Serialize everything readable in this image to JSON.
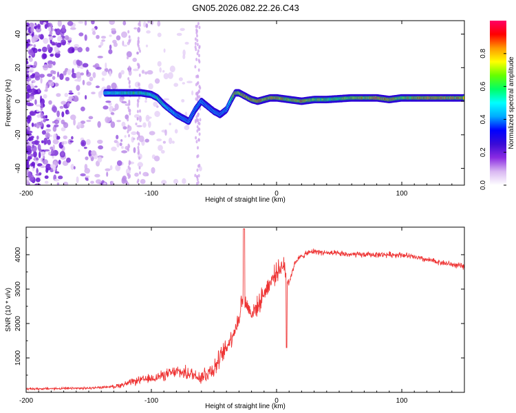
{
  "title": "GN05.2026.082.22.26.C43",
  "chart_data": [
    {
      "type": "heatmap",
      "name": "spectrogram",
      "xlabel": "Height of straight line (km)",
      "ylabel": "Frequency (Hz)",
      "xlim": [
        -200,
        150
      ],
      "ylim": [
        -50,
        48
      ],
      "xticks": [
        -200,
        -100,
        0,
        100
      ],
      "yticks": [
        -40,
        -20,
        0,
        20,
        40
      ],
      "colorbar": {
        "label": "Normalized spectral amplitude",
        "range": [
          0,
          1
        ],
        "ticks": [
          "0.0",
          "0.2",
          "0.4",
          "0.6",
          "0.8"
        ],
        "tick_values": [
          0,
          0.2,
          0.4,
          0.6,
          0.8
        ],
        "colors": [
          "#ffffff",
          "#d9b8f2",
          "#8a2be2",
          "#3a0bd6",
          "#0000ff",
          "#00aaff",
          "#00ffff",
          "#00ff66",
          "#66ff00",
          "#ffff00",
          "#ff9900",
          "#ff0000",
          "#ff0066"
        ]
      },
      "trace": {
        "height_km": [
          -137,
          -125,
          -115,
          -108,
          -100,
          -95,
          -90,
          -85,
          -80,
          -75,
          -70,
          -65,
          -60,
          -55,
          -50,
          -45,
          -40,
          -36,
          -33,
          -30,
          -25,
          -20,
          -15,
          -10,
          -5,
          0,
          10,
          20,
          30,
          40,
          60,
          80,
          90,
          100,
          120,
          150
        ],
        "frequency_hz": [
          5,
          5,
          5,
          5,
          4,
          2,
          -2,
          -5,
          -8,
          -10,
          -12,
          -5,
          0,
          -3,
          -6,
          -8,
          -5,
          1,
          5,
          5,
          3,
          1,
          0,
          1,
          2,
          2,
          1,
          0,
          1,
          1,
          2,
          2,
          1,
          2,
          2,
          2
        ],
        "amplitude": [
          0.45,
          0.5,
          0.6,
          0.55,
          0.5,
          0.55,
          0.5,
          0.4,
          0.35,
          0.3,
          0.25,
          0.3,
          0.35,
          0.25,
          0.3,
          0.25,
          0.3,
          0.5,
          0.85,
          0.8,
          0.9,
          0.85,
          0.9,
          0.8,
          0.85,
          0.9,
          0.75,
          0.85,
          0.7,
          0.65,
          0.75,
          0.9,
          0.85,
          0.7,
          0.9,
          0.85
        ]
      },
      "noise_region_km": [
        -200,
        -60
      ]
    },
    {
      "type": "line",
      "name": "snr",
      "xlabel": "Height of straight line (km)",
      "ylabel": "SNR (10 * v/v)",
      "xlim": [
        -200,
        150
      ],
      "ylim": [
        0,
        4800
      ],
      "xticks": [
        -200,
        -100,
        0,
        100
      ],
      "yticks": [
        1000,
        2000,
        3000,
        4000
      ],
      "color": "#ee3333",
      "envelope": {
        "height_km": [
          -200,
          -150,
          -130,
          -120,
          -110,
          -100,
          -90,
          -80,
          -70,
          -60,
          -50,
          -45,
          -40,
          -35,
          -30,
          -28,
          -25,
          -20,
          -15,
          -10,
          -5,
          0,
          5,
          10,
          15,
          20,
          25,
          30,
          40,
          60,
          80,
          100,
          120,
          150
        ],
        "snr": [
          100,
          120,
          170,
          250,
          350,
          400,
          500,
          600,
          550,
          450,
          700,
          1000,
          1300,
          1700,
          2100,
          2700,
          2600,
          2300,
          2500,
          2900,
          3200,
          3500,
          3700,
          3200,
          3800,
          3950,
          4050,
          4100,
          4050,
          4000,
          4000,
          4000,
          3850,
          3650
        ]
      },
      "spike": {
        "height_km": -26,
        "snr": 4750
      }
    }
  ]
}
